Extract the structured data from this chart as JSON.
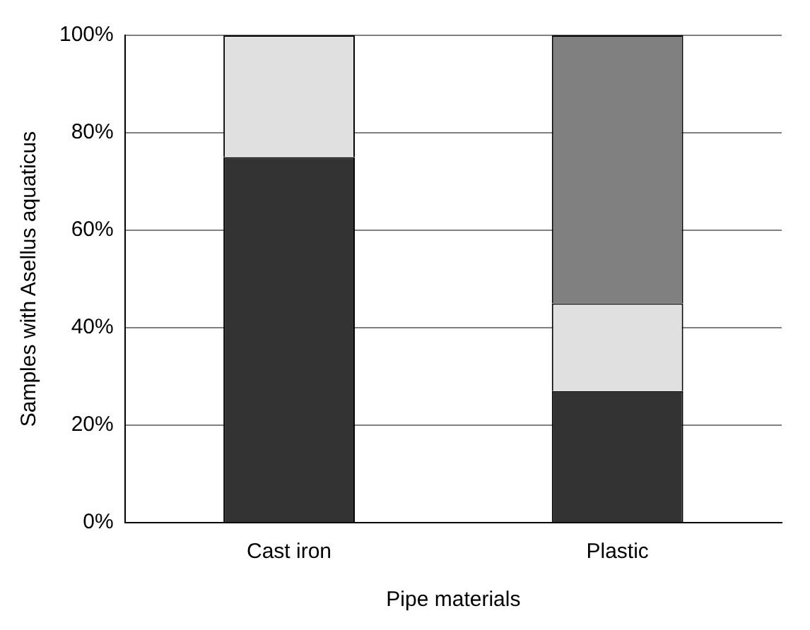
{
  "chart_data": {
    "type": "bar",
    "stacked": true,
    "xlabel": "Pipe materials",
    "ylabel": "Samples with Asellus aquaticus",
    "categories": [
      "Cast iron",
      "Plastic"
    ],
    "series": [
      {
        "color": "#333333",
        "values": [
          75,
          27
        ]
      },
      {
        "color": "#e0e0e0",
        "values": [
          25,
          18
        ]
      },
      {
        "color": "#808080",
        "values": [
          0,
          55
        ]
      }
    ],
    "ylim": [
      0,
      100
    ],
    "yticks": [
      {
        "value": 0,
        "label": "0%"
      },
      {
        "value": 20,
        "label": "20%"
      },
      {
        "value": 40,
        "label": "40%"
      },
      {
        "value": 60,
        "label": "60%"
      },
      {
        "value": 80,
        "label": "80%"
      },
      {
        "value": 100,
        "label": "100%"
      }
    ],
    "grid": "y",
    "legend": false
  }
}
